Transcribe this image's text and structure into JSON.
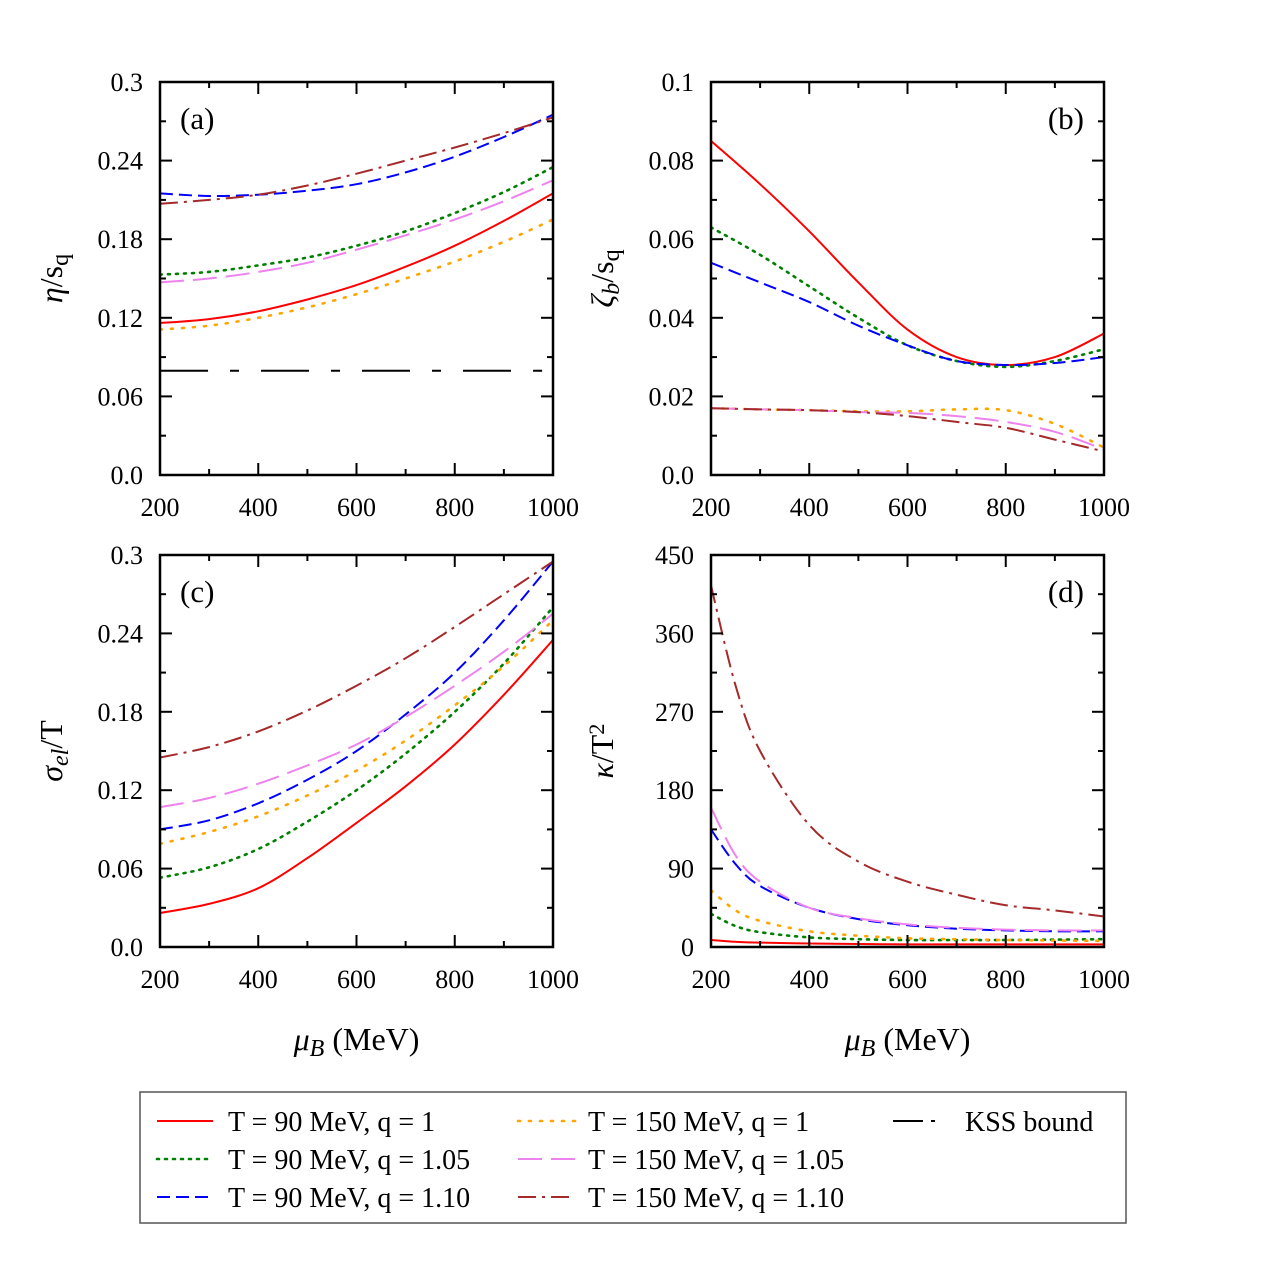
{
  "series_styles": [
    {
      "name": "T = 90 MeV, q = 1",
      "color": "#ff0000",
      "dash": "solid"
    },
    {
      "name": "T = 90 MeV, q = 1.05",
      "color": "#008000",
      "dash": "dotted"
    },
    {
      "name": "T = 90 MeV, q = 1.10",
      "color": "#0000ff",
      "dash": "dashed"
    },
    {
      "name": "T = 150 MeV, q = 1",
      "color": "#ffa500",
      "dash": "sparse-dotted"
    },
    {
      "name": "T = 150 MeV, q = 1.05",
      "color": "#ee82ee",
      "dash": "long-dashed"
    },
    {
      "name": "T = 150 MeV, q = 1.10",
      "color": "#a52a2a",
      "dash": "dash-dot"
    }
  ],
  "legend": {
    "placement": "bottom",
    "entries": [
      {
        "label": "T = 90 MeV, q = 1",
        "color": "#ff0000",
        "dash": "solid"
      },
      {
        "label": "T = 90 MeV, q = 1.05",
        "color": "#008000",
        "dash": "dotted"
      },
      {
        "label": "T = 90 MeV, q = 1.10",
        "color": "#0000ff",
        "dash": "dashed"
      },
      {
        "label": "T = 150 MeV, q = 1",
        "color": "#ffa500",
        "dash": "sparse-dotted"
      },
      {
        "label": "T = 150 MeV, q = 1.05",
        "color": "#ee82ee",
        "dash": "long-dashed"
      },
      {
        "label": "T = 150 MeV, q = 1.10",
        "color": "#a52a2a",
        "dash": "dash-dot"
      },
      {
        "label": "KSS bound",
        "color": "#000000",
        "dash": "long-dash-dot"
      }
    ]
  },
  "chart_data": [
    {
      "type": "line",
      "panel_label": "(a)",
      "panel_label_position": "top-left",
      "xlabel": "",
      "ylabel": "η/s_q",
      "ylabel_italic": "η",
      "xlim": [
        200,
        1000
      ],
      "ylim": [
        0,
        0.3
      ],
      "xticks": [
        "200",
        "400",
        "600",
        "800",
        "1000"
      ],
      "yticks": [
        "0.0",
        "0.06",
        "0.12",
        "0.18",
        "0.24",
        "0.3"
      ],
      "x": [
        200,
        300,
        400,
        500,
        600,
        700,
        800,
        900,
        1000
      ],
      "series": [
        {
          "name": "T = 90 MeV, q = 1",
          "values": [
            0.116,
            0.119,
            0.125,
            0.134,
            0.145,
            0.159,
            0.175,
            0.194,
            0.215
          ]
        },
        {
          "name": "T = 90 MeV, q = 1.05",
          "values": [
            0.153,
            0.155,
            0.16,
            0.166,
            0.175,
            0.186,
            0.2,
            0.216,
            0.235
          ]
        },
        {
          "name": "T = 90 MeV, q = 1.10",
          "values": [
            0.215,
            0.213,
            0.214,
            0.217,
            0.222,
            0.231,
            0.243,
            0.258,
            0.275
          ]
        },
        {
          "name": "T = 150 MeV, q = 1",
          "values": [
            0.111,
            0.114,
            0.12,
            0.128,
            0.138,
            0.15,
            0.163,
            0.178,
            0.195
          ]
        },
        {
          "name": "T = 150 MeV, q = 1.05",
          "values": [
            0.147,
            0.15,
            0.155,
            0.162,
            0.172,
            0.183,
            0.195,
            0.209,
            0.225
          ]
        },
        {
          "name": "T = 150 MeV, q = 1.10",
          "values": [
            0.207,
            0.21,
            0.214,
            0.221,
            0.23,
            0.24,
            0.25,
            0.261,
            0.273
          ]
        },
        {
          "name": "KSS bound",
          "values": [
            0.0796,
            0.0796,
            0.0796,
            0.0796,
            0.0796,
            0.0796,
            0.0796,
            0.0796,
            0.0796
          ]
        }
      ]
    },
    {
      "type": "line",
      "panel_label": "(b)",
      "panel_label_position": "top-right",
      "xlabel": "",
      "ylabel": "ζ_b/s_q",
      "ylabel_italic": "ζb",
      "xlim": [
        200,
        1000
      ],
      "ylim": [
        0,
        0.1
      ],
      "xticks": [
        "200",
        "400",
        "600",
        "800",
        "1000"
      ],
      "yticks": [
        "0.0",
        "0.02",
        "0.04",
        "0.06",
        "0.08",
        "0.1"
      ],
      "x": [
        200,
        300,
        400,
        500,
        600,
        700,
        800,
        900,
        1000
      ],
      "series": [
        {
          "name": "T = 90 MeV, q = 1",
          "values": [
            0.085,
            0.074,
            0.062,
            0.049,
            0.037,
            0.03,
            0.028,
            0.03,
            0.036
          ]
        },
        {
          "name": "T = 90 MeV, q = 1.05",
          "values": [
            0.063,
            0.056,
            0.048,
            0.04,
            0.033,
            0.029,
            0.0275,
            0.029,
            0.032
          ]
        },
        {
          "name": "T = 90 MeV, q = 1.10",
          "values": [
            0.054,
            0.049,
            0.044,
            0.038,
            0.033,
            0.029,
            0.028,
            0.0285,
            0.03
          ]
        },
        {
          "name": "T = 150 MeV, q = 1",
          "values": [
            0.017,
            0.0167,
            0.0165,
            0.0162,
            0.0162,
            0.0167,
            0.0165,
            0.013,
            0.007
          ]
        },
        {
          "name": "T = 150 MeV, q = 1.05",
          "values": [
            0.017,
            0.0167,
            0.0165,
            0.016,
            0.0158,
            0.015,
            0.0135,
            0.011,
            0.0065
          ]
        },
        {
          "name": "T = 150 MeV, q = 1.10",
          "values": [
            0.017,
            0.0167,
            0.0165,
            0.016,
            0.015,
            0.0135,
            0.012,
            0.009,
            0.006
          ]
        }
      ]
    },
    {
      "type": "line",
      "panel_label": "(c)",
      "panel_label_position": "top-left",
      "xlabel": "μ_B (MeV)",
      "xlabel_italic": "μB",
      "ylabel": "σ_el/T",
      "ylabel_italic": "σel",
      "xlim": [
        200,
        1000
      ],
      "ylim": [
        0,
        0.3
      ],
      "xticks": [
        "200",
        "400",
        "600",
        "800",
        "1000"
      ],
      "yticks": [
        "0.0",
        "0.06",
        "0.12",
        "0.18",
        "0.24",
        "0.3"
      ],
      "x": [
        200,
        300,
        400,
        500,
        600,
        700,
        800,
        900,
        1000
      ],
      "series": [
        {
          "name": "T = 90 MeV, q = 1",
          "values": [
            0.026,
            0.033,
            0.045,
            0.068,
            0.095,
            0.123,
            0.155,
            0.193,
            0.235
          ]
        },
        {
          "name": "T = 90 MeV, q = 1.05",
          "values": [
            0.053,
            0.061,
            0.075,
            0.096,
            0.12,
            0.148,
            0.18,
            0.217,
            0.26
          ]
        },
        {
          "name": "T = 90 MeV, q = 1.10",
          "values": [
            0.09,
            0.097,
            0.11,
            0.128,
            0.15,
            0.178,
            0.21,
            0.25,
            0.295
          ]
        },
        {
          "name": "T = 150 MeV, q = 1",
          "values": [
            0.079,
            0.088,
            0.1,
            0.116,
            0.135,
            0.158,
            0.185,
            0.215,
            0.25
          ]
        },
        {
          "name": "T = 150 MeV, q = 1.05",
          "values": [
            0.107,
            0.114,
            0.125,
            0.139,
            0.155,
            0.176,
            0.2,
            0.226,
            0.255
          ]
        },
        {
          "name": "T = 150 MeV, q = 1.10",
          "values": [
            0.145,
            0.153,
            0.165,
            0.181,
            0.2,
            0.221,
            0.245,
            0.27,
            0.295
          ]
        }
      ]
    },
    {
      "type": "line",
      "panel_label": "(d)",
      "panel_label_position": "top-right",
      "xlabel": "μ_B (MeV)",
      "xlabel_italic": "μB",
      "ylabel": "κ/T^2",
      "ylabel_italic": "κ",
      "xlim": [
        200,
        1000
      ],
      "ylim": [
        0,
        450
      ],
      "xticks": [
        "200",
        "400",
        "600",
        "800",
        "1000"
      ],
      "yticks": [
        "0",
        "90",
        "180",
        "270",
        "360",
        "450"
      ],
      "x": [
        200,
        250,
        300,
        400,
        500,
        600,
        700,
        800,
        900,
        1000
      ],
      "series": [
        {
          "name": "T = 90 MeV, q = 1",
          "values": [
            8,
            6,
            5,
            4,
            3.5,
            3,
            3,
            3,
            3,
            3
          ]
        },
        {
          "name": "T = 90 MeV, q = 1.05",
          "values": [
            38,
            24,
            17,
            11,
            9,
            8,
            8,
            8,
            8.5,
            9
          ]
        },
        {
          "name": "T = 90 MeV, q = 1.10",
          "values": [
            135,
            95,
            70,
            45,
            32,
            25,
            21,
            19,
            18,
            18
          ]
        },
        {
          "name": "T = 150 MeV, q = 1",
          "values": [
            65,
            42,
            30,
            18,
            13,
            10,
            9,
            8,
            7.5,
            7
          ]
        },
        {
          "name": "T = 150 MeV, q = 1.05",
          "values": [
            160,
            105,
            75,
            45,
            33,
            26,
            22,
            20,
            19,
            19
          ]
        },
        {
          "name": "T = 150 MeV, q = 1.10",
          "values": [
            415,
            300,
            225,
            140,
            98,
            75,
            60,
            48,
            42,
            35
          ]
        }
      ]
    }
  ]
}
